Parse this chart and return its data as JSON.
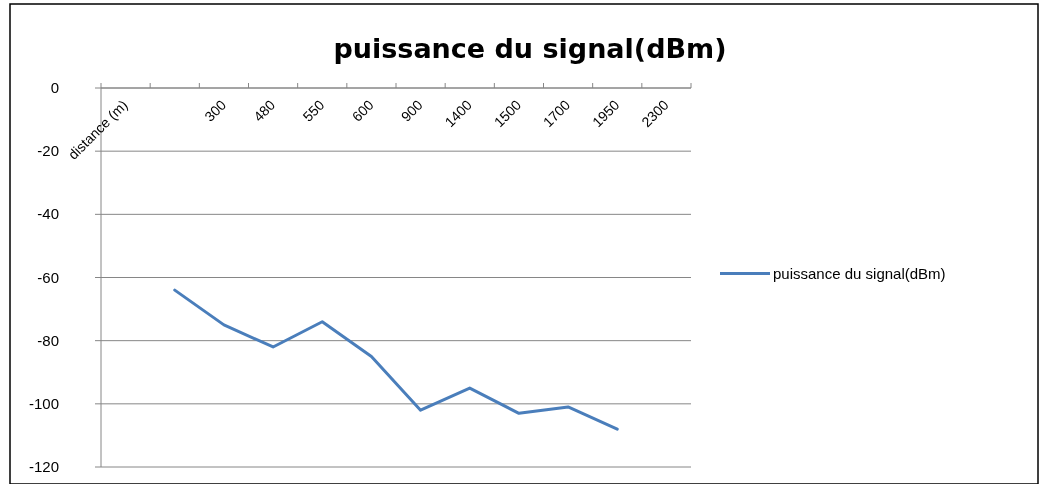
{
  "chart_data": {
    "type": "line",
    "title": "puissance du signal(dBm)",
    "categories": [
      "distance (m)",
      null,
      "300",
      "480",
      "550",
      "600",
      "900",
      "1400",
      "1500",
      "1700",
      "1950",
      "2300"
    ],
    "series": [
      {
        "name": "puissance du signal(dBm)",
        "color": "#4a7ebb",
        "values": [
          null,
          -64,
          -75,
          -82,
          -74,
          -85,
          -102,
          -95,
          -103,
          -101,
          -108,
          null
        ]
      }
    ],
    "ylim": [
      -120,
      0
    ],
    "yticks": [
      0,
      -20,
      -40,
      -60,
      -80,
      -100,
      -120
    ],
    "grid": "y",
    "legend": "right"
  }
}
